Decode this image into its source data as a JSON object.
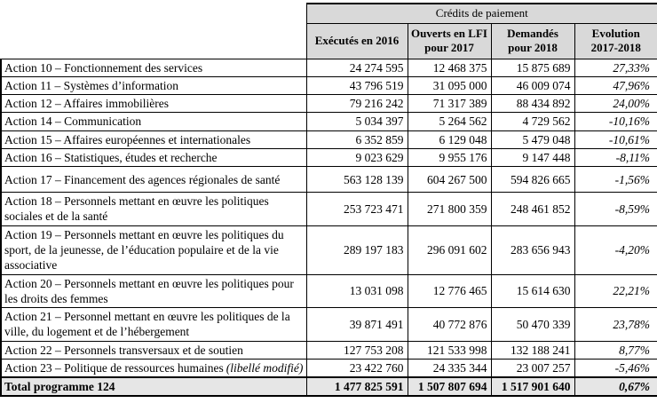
{
  "colors": {
    "header_bg": "#d9d9d9",
    "total_row_bg": "#e6e6e6",
    "border": "#000000"
  },
  "table": {
    "title": "Crédits de paiement",
    "columns": [
      "Exécutés en 2016",
      "Ouverts en LFI pour 2017",
      "Demandés pour 2018",
      "Evolution 2017-2018"
    ],
    "rows": [
      {
        "label": "Action 10 – Fonctionnement des services",
        "v2016": "24 274 595",
        "v2017": "12 468 375",
        "v2018": "15 875 689",
        "evo": "27,33%"
      },
      {
        "label": "Action 11 – Systèmes d’information",
        "v2016": "43 796 519",
        "v2017": "31 095 000",
        "v2018": "46 009 074",
        "evo": "47,96%"
      },
      {
        "label": "Action 12 – Affaires immobilières",
        "v2016": "79 216 242",
        "v2017": "71 317 389",
        "v2018": "88 434 892",
        "evo": "24,00%"
      },
      {
        "label": "Action 14 – Communication",
        "v2016": "5 034 397",
        "v2017": "5 264 562",
        "v2018": "4 729 562",
        "evo": "-10,16%"
      },
      {
        "label": "Action 15 – Affaires européennes et internationales",
        "v2016": "6 352 859",
        "v2017": "6 129 048",
        "v2018": "5 479 048",
        "evo": "-10,61%"
      },
      {
        "label": "Action 16 – Statistiques, études et recherche",
        "v2016": "9 023 629",
        "v2017": "9 955 176",
        "v2018": "9 147 448",
        "evo": "-8,11%"
      },
      {
        "label": "Action 17 – Financement des agences régionales de santé",
        "v2016": "563 128 139",
        "v2017": "604 267 500",
        "v2018": "594 826 665",
        "evo": "-1,56%"
      },
      {
        "label": "Action 18 – Personnels mettant en œuvre les politiques sociales et de la santé",
        "v2016": "253 723 471",
        "v2017": "271 800 359",
        "v2018": "248 461 852",
        "evo": "-8,59%"
      },
      {
        "label": "Action 19 – Personnels mettant en œuvre les politiques du sport, de la jeunesse, de l’éducation populaire et de la vie associative",
        "v2016": "289 197 183",
        "v2017": "296 091 602",
        "v2018": "283 656 943",
        "evo": "-4,20%"
      },
      {
        "label": "Action 20 – Personnels mettant en œuvre les politiques pour les droits des femmes",
        "v2016": "13 031 098",
        "v2017": "12 776 465",
        "v2018": "15 614 630",
        "evo": "22,21%"
      },
      {
        "label": "Action 21 – Personnel mettant en œuvre les politiques de la ville, du logement et de l’hébergement",
        "v2016": "39 871 491",
        "v2017": "40 772 876",
        "v2018": "50 470 339",
        "evo": "23,78%"
      },
      {
        "label": "Action 22 – Personnels transversaux et de soutien",
        "v2016": "127 753 208",
        "v2017": "121 533 998",
        "v2018": "132 188 241",
        "evo": "8,77%"
      },
      {
        "label": "Action 23 – Politique de ressources humaines",
        "note": "(libellé modifié)",
        "v2016": "23 422 760",
        "v2017": "24 335 344",
        "v2018": "23 007 257",
        "evo": "-5,46%"
      }
    ],
    "total": {
      "label": "Total programme 124",
      "v2016": "1 477 825 591",
      "v2017": "1 507 807 694",
      "v2018": "1 517 901 640",
      "evo": "0,67%"
    }
  }
}
